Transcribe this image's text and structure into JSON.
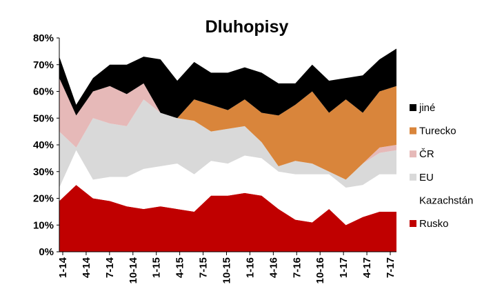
{
  "chart_data": {
    "type": "area",
    "stacked": true,
    "title": "Dluhopisy",
    "xlabel": "",
    "ylabel": "",
    "ylim": [
      0,
      80
    ],
    "y_ticks": [
      "0%",
      "10%",
      "20%",
      "30%",
      "40%",
      "50%",
      "60%",
      "70%",
      "80%"
    ],
    "x_tick_labels": [
      "1-14",
      "4-14",
      "7-14",
      "10-14",
      "1-15",
      "4-15",
      "7-15",
      "10-15",
      "1-16",
      "4-16",
      "7-16",
      "10-16",
      "1-17",
      "4-17",
      "7-17"
    ],
    "legend_position": "right",
    "series_order_bottom_to_top": [
      "Rusko",
      "Kazachstán",
      "EU",
      "ČR",
      "Turecko",
      "jiné"
    ],
    "series": [
      {
        "name": "Rusko",
        "color": "#c00000",
        "values": [
          19,
          25,
          20,
          19,
          17,
          16,
          17,
          16,
          15,
          21,
          21,
          22,
          21,
          16,
          12,
          11,
          16,
          10,
          13,
          15,
          15
        ]
      },
      {
        "name": "Kazachstán",
        "color": "#ffffff",
        "values": [
          5,
          13,
          7,
          9,
          11,
          15,
          15,
          17,
          14,
          13,
          12,
          14,
          14,
          14,
          17,
          18,
          13,
          14,
          12,
          14,
          14
        ]
      },
      {
        "name": "EU",
        "color": "#d9d9d9",
        "values": [
          21,
          1,
          23,
          20,
          19,
          26,
          20,
          17,
          20,
          11,
          13,
          11,
          6,
          2,
          5,
          4,
          1,
          3,
          8,
          8,
          9
        ]
      },
      {
        "name": "ČR",
        "color": "#e6b9b8",
        "values": [
          20,
          12,
          10,
          14,
          12,
          6,
          0,
          0,
          0,
          0,
          0,
          0,
          0,
          0,
          0,
          0,
          0,
          0,
          0,
          2,
          2
        ]
      },
      {
        "name": "Turecko",
        "color": "#d9853b",
        "values": [
          0,
          0,
          0,
          0,
          0,
          0,
          0,
          0,
          8,
          10,
          7,
          10,
          11,
          19,
          21,
          27,
          22,
          30,
          19,
          21,
          22
        ]
      },
      {
        "name": "jiné",
        "color": "#000000",
        "values": [
          8,
          4,
          5,
          8,
          11,
          10,
          20,
          14,
          14,
          12,
          14,
          12,
          15,
          12,
          8,
          10,
          12,
          8,
          14,
          12,
          14
        ]
      }
    ]
  }
}
